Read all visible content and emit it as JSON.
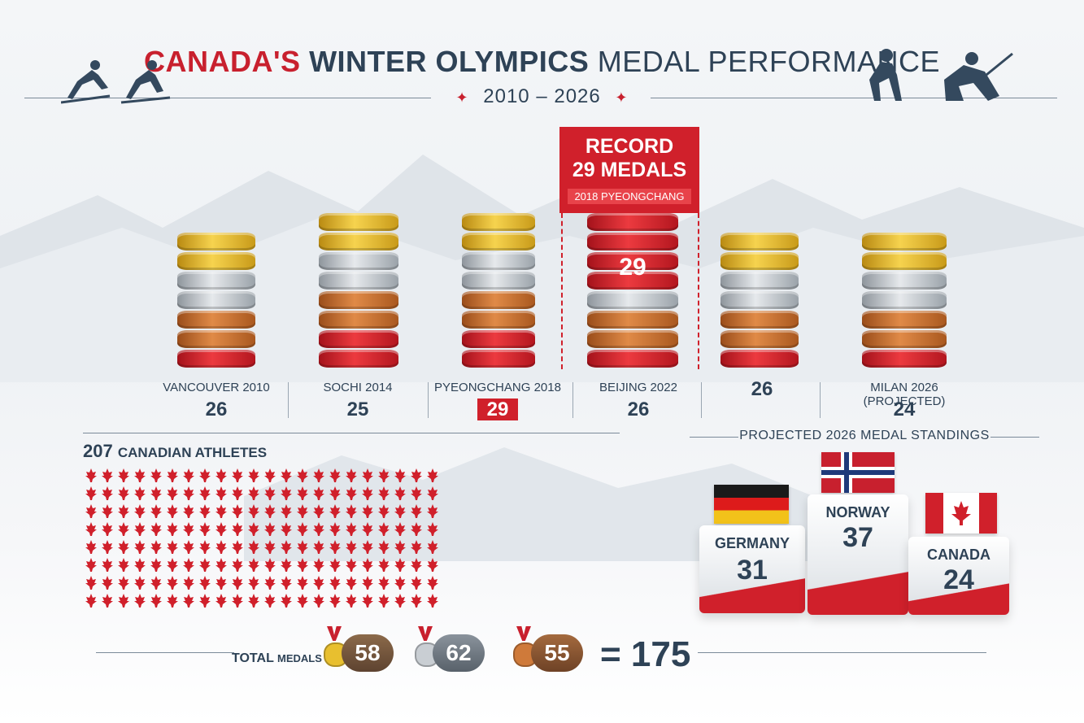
{
  "header": {
    "title_part1": "CANADA'S",
    "title_part2": "WINTER OLYMPICS",
    "title_part3": "MEDAL PERFORMANCE",
    "years": "2010 – 2026"
  },
  "callout": {
    "line1": "RECORD",
    "line2": "29 MEDALS",
    "line3": "2018 PYEONGCHANG"
  },
  "chart_data": {
    "type": "bar",
    "categories": [
      "VANCOUVER 2010",
      "SOCHI 2014",
      "PYEONGCHANG 2018",
      "BEIJING 2022",
      "",
      "MILAN 2026 (PROJECTED)"
    ],
    "values": [
      26,
      25,
      29,
      26,
      26,
      24
    ],
    "highlight_index": 3,
    "stack_label": "29",
    "title": "CANADA'S WINTER OLYMPICS MEDAL PERFORMANCE",
    "colors": {
      "gold": "#e8bf2f",
      "silver": "#c9ced3",
      "bronze": "#cf7a3a",
      "red": "#d0202b"
    }
  },
  "columns": [
    {
      "name": "VANCOUVER 2010",
      "value": "26"
    },
    {
      "name": "SOCHI 2014",
      "value": "25"
    },
    {
      "name": "PYEONGCHANG 2018",
      "value": "29"
    },
    {
      "name": "BEIJING 2022",
      "value": "26"
    },
    {
      "name": "",
      "value": "26"
    },
    {
      "name": "MILAN 2026 (PROJECTED)",
      "value": "24"
    }
  ],
  "athletes": {
    "count": "207",
    "label": "CANADIAN ATHLETES",
    "rows": 8,
    "cols": 22,
    "icon": "maple-leaf-icon"
  },
  "standings": {
    "title": "PROJECTED 2026 MEDAL STANDINGS",
    "podium": [
      {
        "country": "GERMANY",
        "medals": "31",
        "flag": "germany-flag"
      },
      {
        "country": "NORWAY",
        "medals": "37",
        "flag": "norway-flag"
      },
      {
        "country": "CANADA",
        "medals": "24",
        "flag": "canada-flag"
      }
    ]
  },
  "totals": {
    "label_main": "TOTAL",
    "label_small": "MEDALS",
    "gold": "58",
    "silver": "62",
    "bronze": "55",
    "grand": "= 175"
  }
}
